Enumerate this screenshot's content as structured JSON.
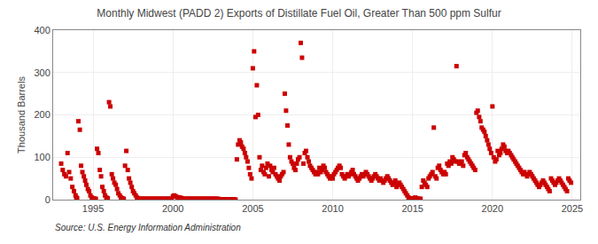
{
  "chart_data": {
    "type": "scatter",
    "title": "Monthly Midwest (PADD 2) Exports of Distillate Fuel Oil, Greater Than 500 ppm Sulfur",
    "ylabel": "Thousand Barrels",
    "source": "Source: U.S. Energy Information Administration",
    "color": "#cc0000",
    "marker": "square",
    "grid": true,
    "xlim": [
      1992.5,
      2025.5
    ],
    "ylim": [
      0,
      400
    ],
    "xticks": [
      1995,
      2000,
      2005,
      2010,
      2015,
      2020,
      2025
    ],
    "yticks": [
      0,
      100,
      200,
      300,
      400
    ],
    "x": [
      1993.0,
      1993.1,
      1993.2,
      1993.3,
      1993.4,
      1993.5,
      1993.6,
      1993.7,
      1993.8,
      1993.9,
      1993.95,
      1994.0,
      1994.08,
      1994.17,
      1994.25,
      1994.33,
      1994.42,
      1994.5,
      1994.58,
      1994.67,
      1994.75,
      1994.83,
      1994.92,
      1995.0,
      1995.08,
      1995.17,
      1995.25,
      1995.33,
      1995.42,
      1995.5,
      1995.58,
      1995.67,
      1995.75,
      1995.83,
      1995.92,
      1996.0,
      1996.08,
      1996.17,
      1996.25,
      1996.33,
      1996.42,
      1996.5,
      1996.58,
      1996.67,
      1996.75,
      1996.83,
      1996.92,
      1997.0,
      1997.08,
      1997.17,
      1997.25,
      1997.33,
      1997.42,
      1997.5,
      1997.58,
      1997.67,
      1997.75,
      1997.83,
      1997.92,
      1998.0,
      1998.08,
      1998.17,
      1998.25,
      1998.33,
      1998.42,
      1998.5,
      1998.58,
      1998.67,
      1998.75,
      1998.83,
      1998.92,
      1999.0,
      1999.08,
      1999.17,
      1999.25,
      1999.33,
      1999.42,
      1999.5,
      1999.58,
      1999.67,
      1999.75,
      1999.83,
      1999.92,
      2000.0,
      2000.08,
      2000.17,
      2000.25,
      2000.33,
      2000.42,
      2000.5,
      2000.58,
      2000.67,
      2000.75,
      2000.83,
      2000.92,
      2001.0,
      2001.08,
      2001.17,
      2001.25,
      2001.33,
      2001.42,
      2001.5,
      2001.58,
      2001.67,
      2001.75,
      2001.83,
      2001.92,
      2002.0,
      2002.08,
      2002.17,
      2002.25,
      2002.33,
      2002.42,
      2002.5,
      2002.58,
      2002.67,
      2002.75,
      2002.83,
      2002.92,
      2003.0,
      2003.08,
      2003.17,
      2003.25,
      2003.33,
      2003.42,
      2003.5,
      2003.58,
      2003.67,
      2003.75,
      2003.83,
      2003.92,
      2004.0,
      2004.08,
      2004.17,
      2004.25,
      2004.33,
      2004.42,
      2004.5,
      2004.58,
      2004.67,
      2004.75,
      2004.83,
      2004.92,
      2005.0,
      2005.08,
      2005.17,
      2005.25,
      2005.33,
      2005.42,
      2005.5,
      2005.58,
      2005.67,
      2005.75,
      2005.83,
      2005.92,
      2006.0,
      2006.08,
      2006.17,
      2006.25,
      2006.33,
      2006.42,
      2006.5,
      2006.58,
      2006.67,
      2006.75,
      2006.83,
      2006.92,
      2007.0,
      2007.08,
      2007.17,
      2007.25,
      2007.33,
      2007.42,
      2007.5,
      2007.58,
      2007.67,
      2007.75,
      2007.83,
      2007.92,
      2008.0,
      2008.08,
      2008.17,
      2008.25,
      2008.33,
      2008.42,
      2008.5,
      2008.58,
      2008.67,
      2008.75,
      2008.83,
      2008.92,
      2009.0,
      2009.08,
      2009.17,
      2009.25,
      2009.33,
      2009.42,
      2009.5,
      2009.58,
      2009.67,
      2009.75,
      2009.83,
      2009.92,
      2010.0,
      2010.08,
      2010.17,
      2010.25,
      2010.33,
      2010.42,
      2010.5,
      2010.58,
      2010.67,
      2010.75,
      2010.83,
      2010.92,
      2011.0,
      2011.08,
      2011.17,
      2011.25,
      2011.33,
      2011.42,
      2011.5,
      2011.58,
      2011.67,
      2011.75,
      2011.83,
      2011.92,
      2012.0,
      2012.08,
      2012.17,
      2012.25,
      2012.33,
      2012.42,
      2012.5,
      2012.58,
      2012.67,
      2012.75,
      2012.83,
      2012.92,
      2013.0,
      2013.08,
      2013.17,
      2013.25,
      2013.33,
      2013.42,
      2013.5,
      2013.58,
      2013.67,
      2013.75,
      2013.83,
      2013.92,
      2014.0,
      2014.08,
      2014.17,
      2014.25,
      2014.33,
      2014.42,
      2014.5,
      2014.58,
      2014.67,
      2014.75,
      2014.83,
      2014.92,
      2015.0,
      2015.08,
      2015.17,
      2015.25,
      2015.33,
      2015.42,
      2015.5,
      2015.58,
      2015.67,
      2015.75,
      2015.83,
      2015.92,
      2016.0,
      2016.08,
      2016.17,
      2016.25,
      2016.33,
      2016.42,
      2016.5,
      2016.58,
      2016.67,
      2016.75,
      2016.83,
      2016.92,
      2017.0,
      2017.08,
      2017.17,
      2017.25,
      2017.33,
      2017.42,
      2017.5,
      2017.58,
      2017.67,
      2017.75,
      2017.83,
      2017.92,
      2018.0,
      2018.08,
      2018.17,
      2018.25,
      2018.33,
      2018.42,
      2018.5,
      2018.58,
      2018.67,
      2018.75,
      2018.83,
      2018.92,
      2019.0,
      2019.08,
      2019.17,
      2019.25,
      2019.33,
      2019.42,
      2019.5,
      2019.58,
      2019.67,
      2019.75,
      2019.83,
      2019.92,
      2020.0,
      2020.08,
      2020.17,
      2020.25,
      2020.33,
      2020.42,
      2020.5,
      2020.58,
      2020.67,
      2020.75,
      2020.83,
      2020.92,
      2021.0,
      2021.08,
      2021.17,
      2021.25,
      2021.33,
      2021.42,
      2021.5,
      2021.58,
      2021.67,
      2021.75,
      2021.83,
      2021.92,
      2022.0,
      2022.08,
      2022.17,
      2022.25,
      2022.33,
      2022.42,
      2022.5,
      2022.58,
      2022.67,
      2022.75,
      2022.83,
      2022.92,
      2023.0,
      2023.08,
      2023.17,
      2023.25,
      2023.33,
      2023.42,
      2023.5,
      2023.58,
      2023.67,
      2023.75,
      2023.83,
      2023.92,
      2024.0,
      2024.08,
      2024.17,
      2024.25,
      2024.33,
      2024.42,
      2024.5,
      2024.58,
      2024.67,
      2024.75,
      2024.83,
      2024.92
    ],
    "values": [
      85,
      70,
      60,
      55,
      110,
      65,
      50,
      30,
      20,
      10,
      5,
      3,
      185,
      165,
      80,
      65,
      55,
      45,
      35,
      25,
      20,
      10,
      5,
      3,
      2,
      2,
      120,
      110,
      70,
      55,
      30,
      20,
      10,
      5,
      3,
      230,
      220,
      60,
      50,
      40,
      35,
      25,
      15,
      10,
      5,
      3,
      2,
      80,
      115,
      70,
      50,
      40,
      30,
      20,
      15,
      10,
      5,
      3,
      2,
      2,
      2,
      2,
      2,
      2,
      2,
      2,
      2,
      2,
      2,
      2,
      2,
      2,
      2,
      2,
      2,
      2,
      2,
      2,
      2,
      2,
      2,
      2,
      2,
      8,
      10,
      8,
      6,
      5,
      5,
      4,
      3,
      2,
      2,
      2,
      2,
      2,
      2,
      2,
      2,
      2,
      2,
      2,
      2,
      2,
      2,
      2,
      2,
      2,
      2,
      2,
      2,
      2,
      2,
      2,
      2,
      2,
      2,
      2,
      1,
      1,
      1,
      1,
      1,
      1,
      1,
      1,
      1,
      1,
      1,
      1,
      0,
      95,
      130,
      140,
      135,
      125,
      120,
      110,
      100,
      90,
      75,
      60,
      50,
      310,
      350,
      195,
      270,
      200,
      100,
      70,
      80,
      65,
      60,
      75,
      85,
      55,
      80,
      70,
      65,
      75,
      60,
      55,
      50,
      45,
      55,
      60,
      65,
      250,
      210,
      175,
      130,
      100,
      90,
      85,
      75,
      70,
      85,
      95,
      100,
      370,
      335,
      85,
      110,
      115,
      100,
      90,
      80,
      75,
      70,
      65,
      60,
      65,
      60,
      75,
      65,
      70,
      80,
      75,
      65,
      60,
      55,
      50,
      55,
      50,
      60,
      65,
      70,
      75,
      80,
      75,
      60,
      55,
      50,
      55,
      60,
      55,
      60,
      65,
      70,
      60,
      55,
      50,
      45,
      50,
      55,
      60,
      55,
      60,
      65,
      60,
      55,
      50,
      45,
      50,
      55,
      60,
      55,
      50,
      45,
      50,
      45,
      40,
      45,
      50,
      55,
      50,
      45,
      40,
      35,
      40,
      45,
      30,
      35,
      40,
      35,
      30,
      25,
      20,
      15,
      10,
      5,
      3,
      2,
      2,
      3,
      5,
      3,
      2,
      2,
      2,
      30,
      45,
      40,
      35,
      30,
      50,
      55,
      60,
      65,
      170,
      55,
      50,
      75,
      80,
      70,
      65,
      60,
      65,
      60,
      85,
      80,
      90,
      85,
      100,
      95,
      90,
      315,
      90,
      85,
      85,
      90,
      80,
      105,
      110,
      100,
      95,
      90,
      85,
      80,
      75,
      70,
      205,
      210,
      195,
      185,
      170,
      165,
      160,
      150,
      140,
      130,
      120,
      110,
      220,
      100,
      90,
      95,
      115,
      105,
      110,
      120,
      130,
      125,
      115,
      110,
      115,
      110,
      105,
      100,
      95,
      90,
      85,
      80,
      75,
      70,
      65,
      60,
      65,
      60,
      55,
      60,
      65,
      60,
      55,
      50,
      45,
      40,
      35,
      30,
      35,
      40,
      45,
      40,
      35,
      30,
      25,
      20,
      50,
      45,
      40,
      35,
      40,
      45,
      50,
      45,
      40,
      35,
      30,
      25,
      20,
      50,
      45,
      40
    ]
  }
}
